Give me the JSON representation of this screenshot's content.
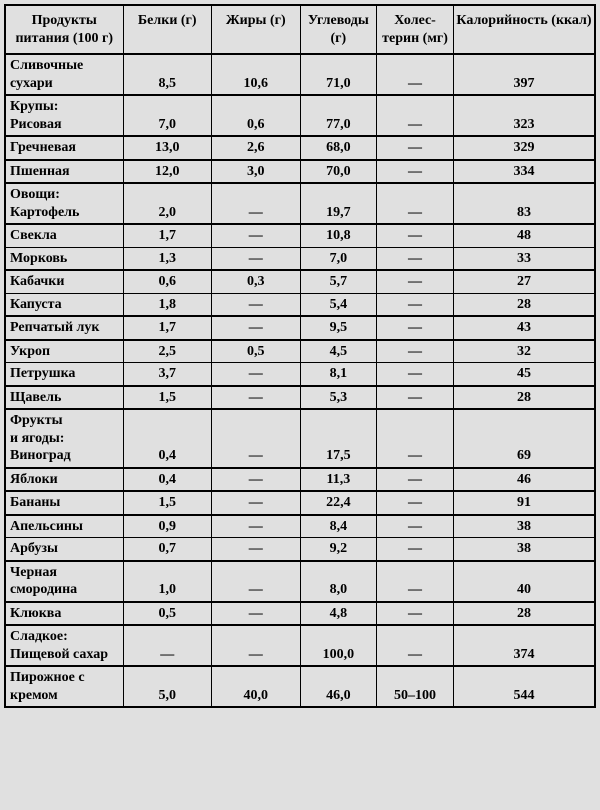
{
  "table": {
    "type": "table",
    "background_color": "#e0e0e0",
    "border_color": "#000000",
    "outer_border_width": 2.5,
    "thick_row_border_width": 2.5,
    "font_family": "Times New Roman",
    "font_size_pt": 11,
    "header_font_weight": "bold",
    "body_font_weight": "bold",
    "dash": "—",
    "column_widths_pct": [
      20,
      15,
      15,
      13,
      13,
      24
    ],
    "columns": [
      "Продукты питания (100 г)",
      "Белки (г)",
      "Жиры (г)",
      "Углево­ды (г)",
      "Холес­терин (мг)",
      "Калорий­ность (ккал)"
    ],
    "rows": [
      {
        "name": "Сливочные сухари",
        "protein": "8,5",
        "fat": "10,6",
        "carbs": "71,0",
        "chol": "—",
        "kcal": "397",
        "thick": true
      },
      {
        "name": "Крупы:\nРисовая",
        "protein": "7,0",
        "fat": "0,6",
        "carbs": "77,0",
        "chol": "—",
        "kcal": "323",
        "thick": true
      },
      {
        "name": "Гречневая",
        "protein": "13,0",
        "fat": "2,6",
        "carbs": "68,0",
        "chol": "—",
        "kcal": "329",
        "thick": true
      },
      {
        "name": "Пшенная",
        "protein": "12,0",
        "fat": "3,0",
        "carbs": "70,0",
        "chol": "—",
        "kcal": "334",
        "thick": true
      },
      {
        "name": "Овощи:\nКартофель",
        "protein": "2,0",
        "fat": "—",
        "carbs": "19,7",
        "chol": "—",
        "kcal": "83",
        "thick": true
      },
      {
        "name": "Свекла",
        "protein": "1,7",
        "fat": "—",
        "carbs": "10,8",
        "chol": "—",
        "kcal": "48",
        "thick": false
      },
      {
        "name": "Морковь",
        "protein": "1,3",
        "fat": "—",
        "carbs": "7,0",
        "chol": "—",
        "kcal": "33",
        "thick": true
      },
      {
        "name": "Кабачки",
        "protein": "0,6",
        "fat": "0,3",
        "carbs": "5,7",
        "chol": "—",
        "kcal": "27",
        "thick": false
      },
      {
        "name": "Капуста",
        "protein": "1,8",
        "fat": "—",
        "carbs": "5,4",
        "chol": "—",
        "kcal": "28",
        "thick": true
      },
      {
        "name": "Репчатый лук",
        "protein": "1,7",
        "fat": "—",
        "carbs": "9,5",
        "chol": "—",
        "kcal": "43",
        "thick": true
      },
      {
        "name": "Укроп",
        "protein": "2,5",
        "fat": "0,5",
        "carbs": "4,5",
        "chol": "—",
        "kcal": "32",
        "thick": false
      },
      {
        "name": "Петрушка",
        "protein": "3,7",
        "fat": "—",
        "carbs": "8,1",
        "chol": "—",
        "kcal": "45",
        "thick": true
      },
      {
        "name": "Щавель",
        "protein": "1,5",
        "fat": "—",
        "carbs": "5,3",
        "chol": "—",
        "kcal": "28",
        "thick": true
      },
      {
        "name": "Фрукты\nи ягоды:\nВиноград",
        "protein": "0,4",
        "fat": "—",
        "carbs": "17,5",
        "chol": "—",
        "kcal": "69",
        "thick": true
      },
      {
        "name": "Яблоки",
        "protein": "0,4",
        "fat": "—",
        "carbs": "11,3",
        "chol": "—",
        "kcal": "46",
        "thick": true
      },
      {
        "name": "Бананы",
        "protein": "1,5",
        "fat": "—",
        "carbs": "22,4",
        "chol": "—",
        "kcal": "91",
        "thick": true
      },
      {
        "name": "Апельсины",
        "protein": "0,9",
        "fat": "—",
        "carbs": "8,4",
        "chol": "—",
        "kcal": "38",
        "thick": false
      },
      {
        "name": "Арбузы",
        "protein": "0,7",
        "fat": "—",
        "carbs": "9,2",
        "chol": "—",
        "kcal": "38",
        "thick": true
      },
      {
        "name": "Черная смородина",
        "protein": "1,0",
        "fat": "—",
        "carbs": "8,0",
        "chol": "—",
        "kcal": "40",
        "thick": true
      },
      {
        "name": "Клюква",
        "protein": "0,5",
        "fat": "—",
        "carbs": "4,8",
        "chol": "—",
        "kcal": "28",
        "thick": true
      },
      {
        "name": "Сладкое:\nПищевой сахар",
        "protein": "—",
        "fat": "—",
        "carbs": "100,0",
        "chol": "—",
        "kcal": "374",
        "thick": true
      },
      {
        "name": "Пирожное с кремом",
        "protein": "5,0",
        "fat": "40,0",
        "carbs": "46,0",
        "chol": "50–100",
        "kcal": "544",
        "thick": false
      }
    ]
  }
}
